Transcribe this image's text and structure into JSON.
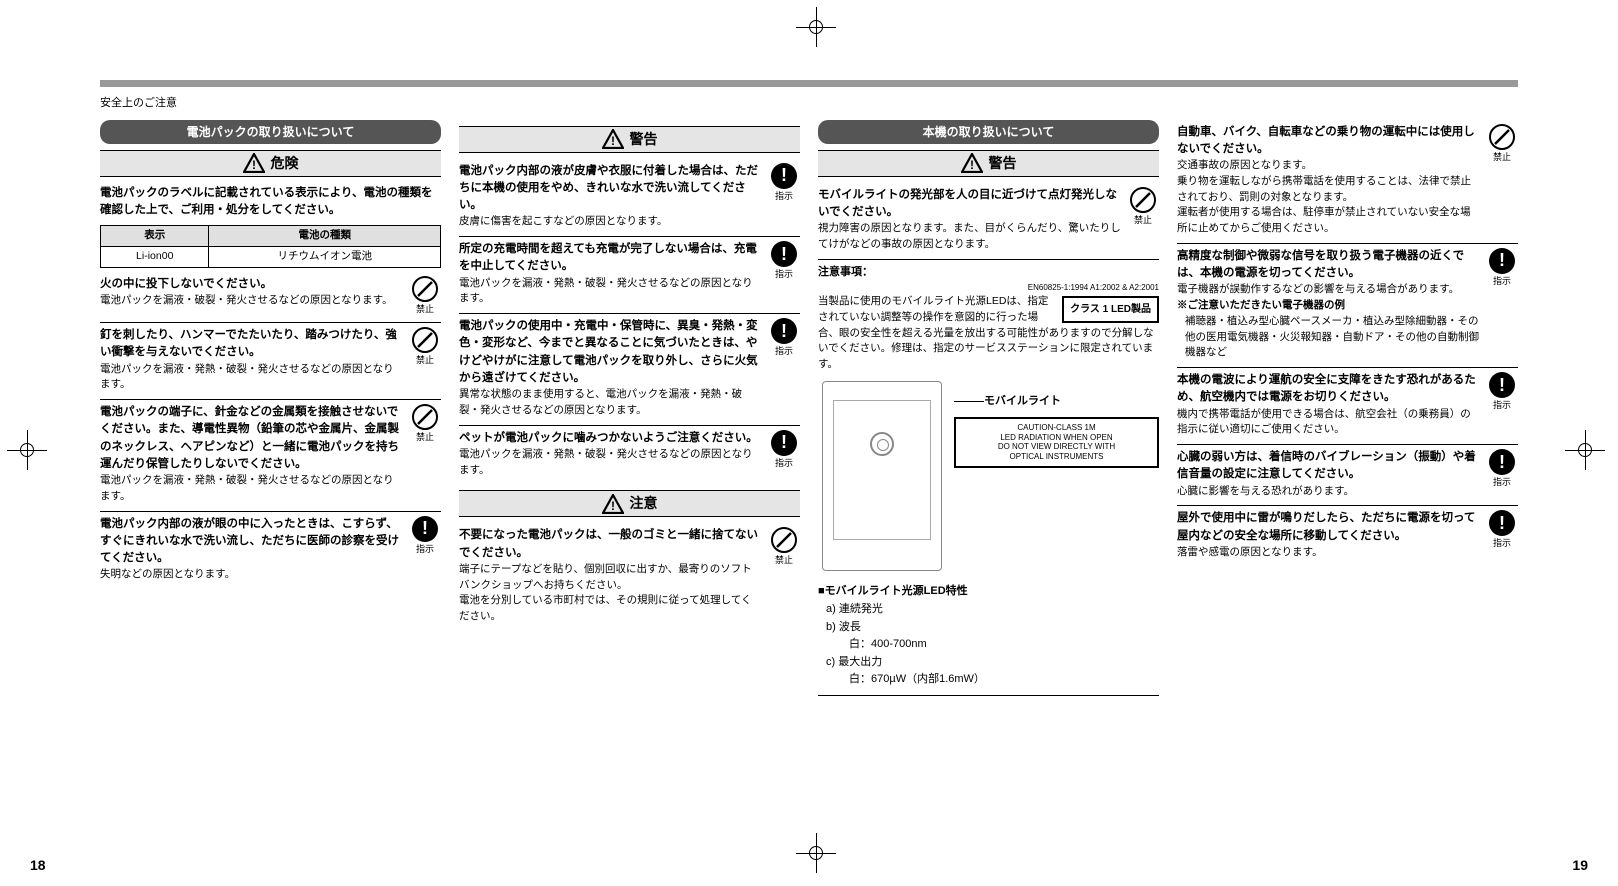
{
  "breadcrumb": "安全上のご注意",
  "page_left": "18",
  "page_right": "19",
  "col1": {
    "header": "電池パックの取り扱いについて",
    "banner": "危険",
    "intro": "電池パックのラベルに記載されている表示により、電池の種類を確認した上で、ご利用・処分をしてください。",
    "table": {
      "h1": "表示",
      "h2": "電池の種類",
      "c1": "Li-ion00",
      "c2": "リチウムイオン電池"
    },
    "items": [
      {
        "title": "火の中に投下しないでください。",
        "desc": "電池パックを漏液・破裂・発火させるなどの原因となります。",
        "icon": "prohibit",
        "label": "禁止"
      },
      {
        "title": "釘を刺したり、ハンマーでたたいたり、踏みつけたり、強い衝撃を与えないでください。",
        "desc": "電池パックを漏液・発熱・破裂・発火させるなどの原因となります。",
        "icon": "prohibit",
        "label": "禁止"
      },
      {
        "title": "電池パックの端子に、針金などの金属類を接触させないでください。また、導電性異物（鉛筆の芯や金属片、金属製のネックレス、ヘアピンなど）と一緒に電池パックを持ち運んだり保管したりしないでください。",
        "desc": "電池パックを漏液・発熱・破裂・発火させるなどの原因となります。",
        "icon": "prohibit",
        "label": "禁止"
      },
      {
        "title": "電池パック内部の液が眼の中に入ったときは、こすらず、すぐにきれいな水で洗い流し、ただちに医師の診察を受けてください。",
        "desc": "失明などの原因となります。",
        "icon": "instruct",
        "label": "指示"
      }
    ]
  },
  "col2": {
    "banner1": "警告",
    "items1": [
      {
        "title": "電池パック内部の液が皮膚や衣服に付着した場合は、ただちに本機の使用をやめ、きれいな水で洗い流してください。",
        "desc": "皮膚に傷害を起こすなどの原因となります。",
        "icon": "instruct",
        "label": "指示"
      },
      {
        "title": "所定の充電時間を超えても充電が完了しない場合は、充電を中止してください。",
        "desc": "電池パックを漏液・発熱・破裂・発火させるなどの原因となります。",
        "icon": "instruct",
        "label": "指示"
      },
      {
        "title": "電池パックの使用中・充電中・保管時に、異臭・発熱・変色・変形など、今までと異なることに気づいたときは、やけどやけがに注意して電池パックを取り外し、さらに火気から遠ざけてください。",
        "desc": "異常な状態のまま使用すると、電池パックを漏液・発熱・破裂・発火させるなどの原因となります。",
        "icon": "instruct",
        "label": "指示"
      },
      {
        "title": "ペットが電池パックに噛みつかないようご注意ください。",
        "desc": "電池パックを漏液・発熱・破裂・発火させるなどの原因となります。",
        "icon": "instruct",
        "label": "指示"
      }
    ],
    "banner2": "注意",
    "items2": [
      {
        "title": "不要になった電池パックは、一般のゴミと一緒に捨てないでください。",
        "desc": "端子にテープなどを貼り、個別回収に出すか、最寄りのソフトバンクショップへお持ちください。\n電池を分別している市町村では、その規則に従って処理してください。",
        "icon": "prohibit",
        "label": "禁止"
      }
    ]
  },
  "col3": {
    "header": "本機の取り扱いについて",
    "banner": "警告",
    "item1": {
      "title": "モバイルライトの発光部を人の目に近づけて点灯発光しないでください。",
      "desc": "視力障害の原因となります。また、目がくらんだり、驚いたりしてけがなどの事故の原因となります。",
      "icon": "prohibit",
      "label": "禁止"
    },
    "note_title": "注意事項：",
    "en_std": "EN60825-1:1994  A1:2002 & A2:2001",
    "class_label": "クラス 1 LED製品",
    "note_body": "当製品に使用のモバイルライト光源LEDは、指定されていない調整等の操作を意図的に行った場合、眼の安全性を超える光量を放出する可能性がありますので分解しないでください。修理は、指定のサービスステーションに限定されています。",
    "ml_label": "モバイルライト",
    "caution_box": "CAUTION-CLASS 1M\nLED RADIATION WHEN OPEN\nDO NOT VIEW DIRECTLY WITH\nOPTICAL INSTRUMENTS",
    "led_title": "■モバイルライト光源LED特性",
    "led_a": "a) 連続発光",
    "led_b": "b) 波長",
    "led_b1": "　白：400-700nm",
    "led_c": "c) 最大出力",
    "led_c1": "　白：670µW（内部1.6mW）"
  },
  "col4": {
    "items": [
      {
        "title": "自動車、バイク、自転車などの乗り物の運転中には使用しないでください。",
        "desc": "交通事故の原因となります。\n乗り物を運転しながら携帯電話を使用することは、法律で禁止されており、罰則の対象となります。\n運転者が使用する場合は、駐停車が禁止されていない安全な場所に止めてからご使用ください。",
        "icon": "prohibit",
        "label": "禁止"
      },
      {
        "title": "高精度な制御や微弱な信号を取り扱う電子機器の近くでは、本機の電源を切ってください。",
        "desc": "電子機器が誤動作するなどの影響を与える場合があります。",
        "note_t": "※ご注意いただきたい電子機器の例",
        "note": "補聴器・植込み型心臓ペースメーカ・植込み型除細動器・その他の医用電気機器・火災報知器・自動ドア・その他の自動制御機器など",
        "icon": "instruct",
        "label": "指示"
      },
      {
        "title": "本機の電波により運航の安全に支障をきたす恐れがあるため、航空機内では電源をお切りください。",
        "desc": "機内で携帯電話が使用できる場合は、航空会社（の乗務員）の指示に従い適切にご使用ください。",
        "icon": "instruct",
        "label": "指示"
      },
      {
        "title": "心臓の弱い方は、着信時のバイブレーション（振動）や着信音量の設定に注意してください。",
        "desc": "心臓に影響を与える恐れがあります。",
        "icon": "instruct",
        "label": "指示"
      },
      {
        "title": "屋外で使用中に雷が鳴りだしたら、ただちに電源を切って屋内などの安全な場所に移動してください。",
        "desc": "落雷や感電の原因となります。",
        "icon": "instruct",
        "label": "指示"
      }
    ]
  }
}
